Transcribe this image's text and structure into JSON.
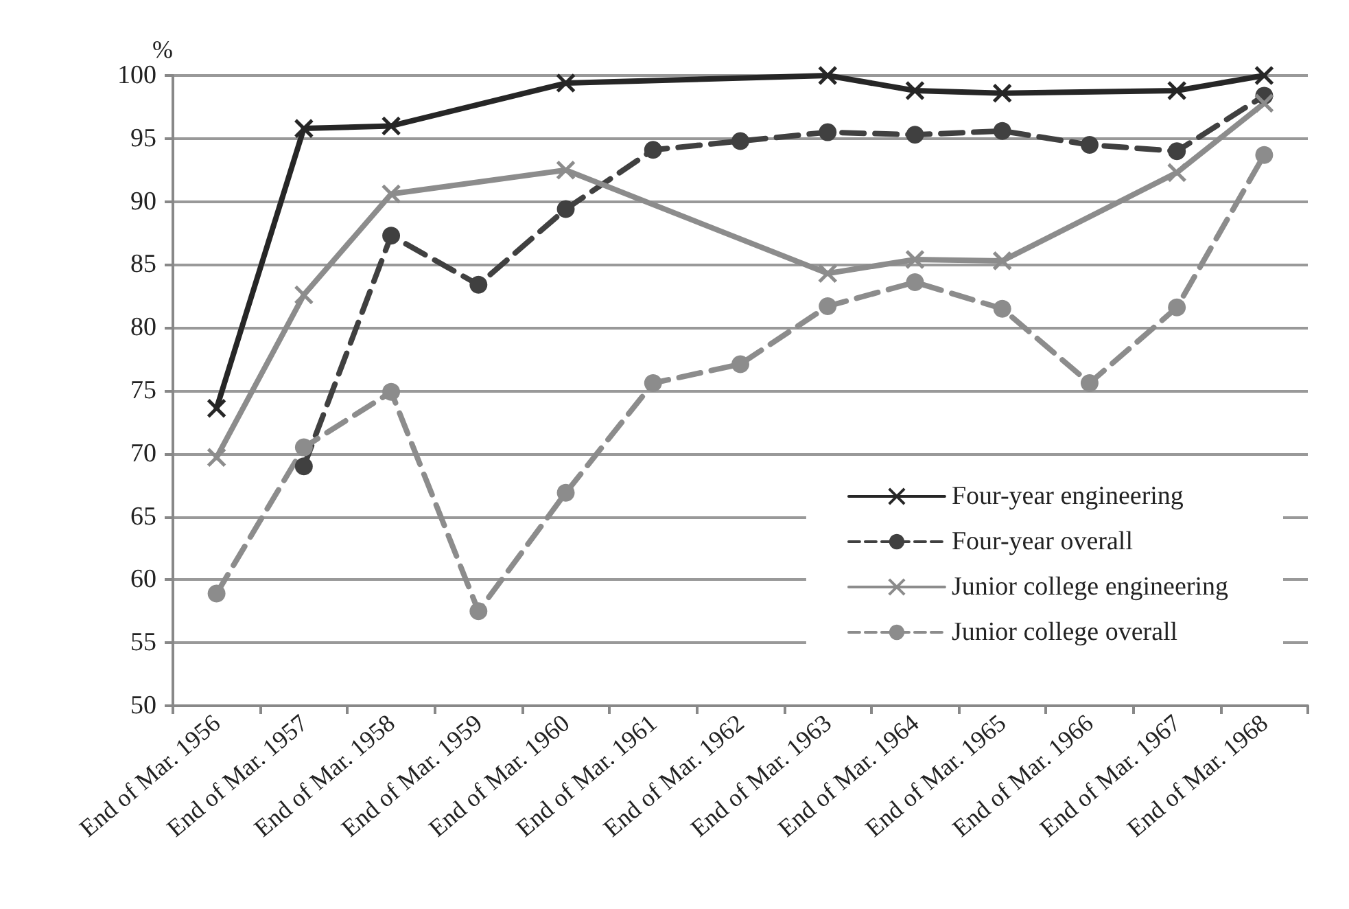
{
  "chart_data": {
    "type": "line",
    "ylabel": "%",
    "categories": [
      "End of Mar. 1956",
      "End of Mar. 1957",
      "End of Mar. 1958",
      "End of Mar. 1959",
      "End of Mar. 1960",
      "End of Mar. 1961",
      "End of Mar. 1962",
      "End of Mar. 1963",
      "End of Mar. 1964",
      "End of Mar. 1965",
      "End of Mar. 1966",
      "End of Mar. 1967",
      "End of Mar. 1968"
    ],
    "series": [
      {
        "name": "Four-year engineering",
        "color": "#262626",
        "marker": "cross",
        "line_style": "solid",
        "values": [
          73.6,
          95.8,
          96.0,
          null,
          99.4,
          null,
          null,
          100,
          98.8,
          98.6,
          null,
          98.8,
          100
        ]
      },
      {
        "name": "Four-year overall",
        "color": "#404040",
        "marker": "circle",
        "line_style": "dashed",
        "values": [
          null,
          69.0,
          87.3,
          83.4,
          89.4,
          94.1,
          94.8,
          95.5,
          95.3,
          95.6,
          94.5,
          94.0,
          98.4
        ]
      },
      {
        "name": "Junior college engineering",
        "color": "#8c8c8c",
        "marker": "cross",
        "line_style": "solid",
        "values": [
          69.7,
          82.6,
          90.6,
          null,
          92.5,
          null,
          null,
          84.3,
          85.4,
          85.3,
          null,
          92.3,
          97.8
        ]
      },
      {
        "name": "Junior college overall",
        "color": "#8c8c8c",
        "marker": "circle",
        "line_style": "dashed",
        "values": [
          58.9,
          70.5,
          74.9,
          57.5,
          66.9,
          75.6,
          77.1,
          81.7,
          83.6,
          81.5,
          75.6,
          81.6,
          93.7
        ]
      }
    ],
    "ylim": [
      50,
      100
    ],
    "yticks": [
      50,
      55,
      60,
      65,
      70,
      75,
      80,
      85,
      90,
      95,
      100
    ],
    "grid": "y",
    "legend": "bottom right"
  }
}
